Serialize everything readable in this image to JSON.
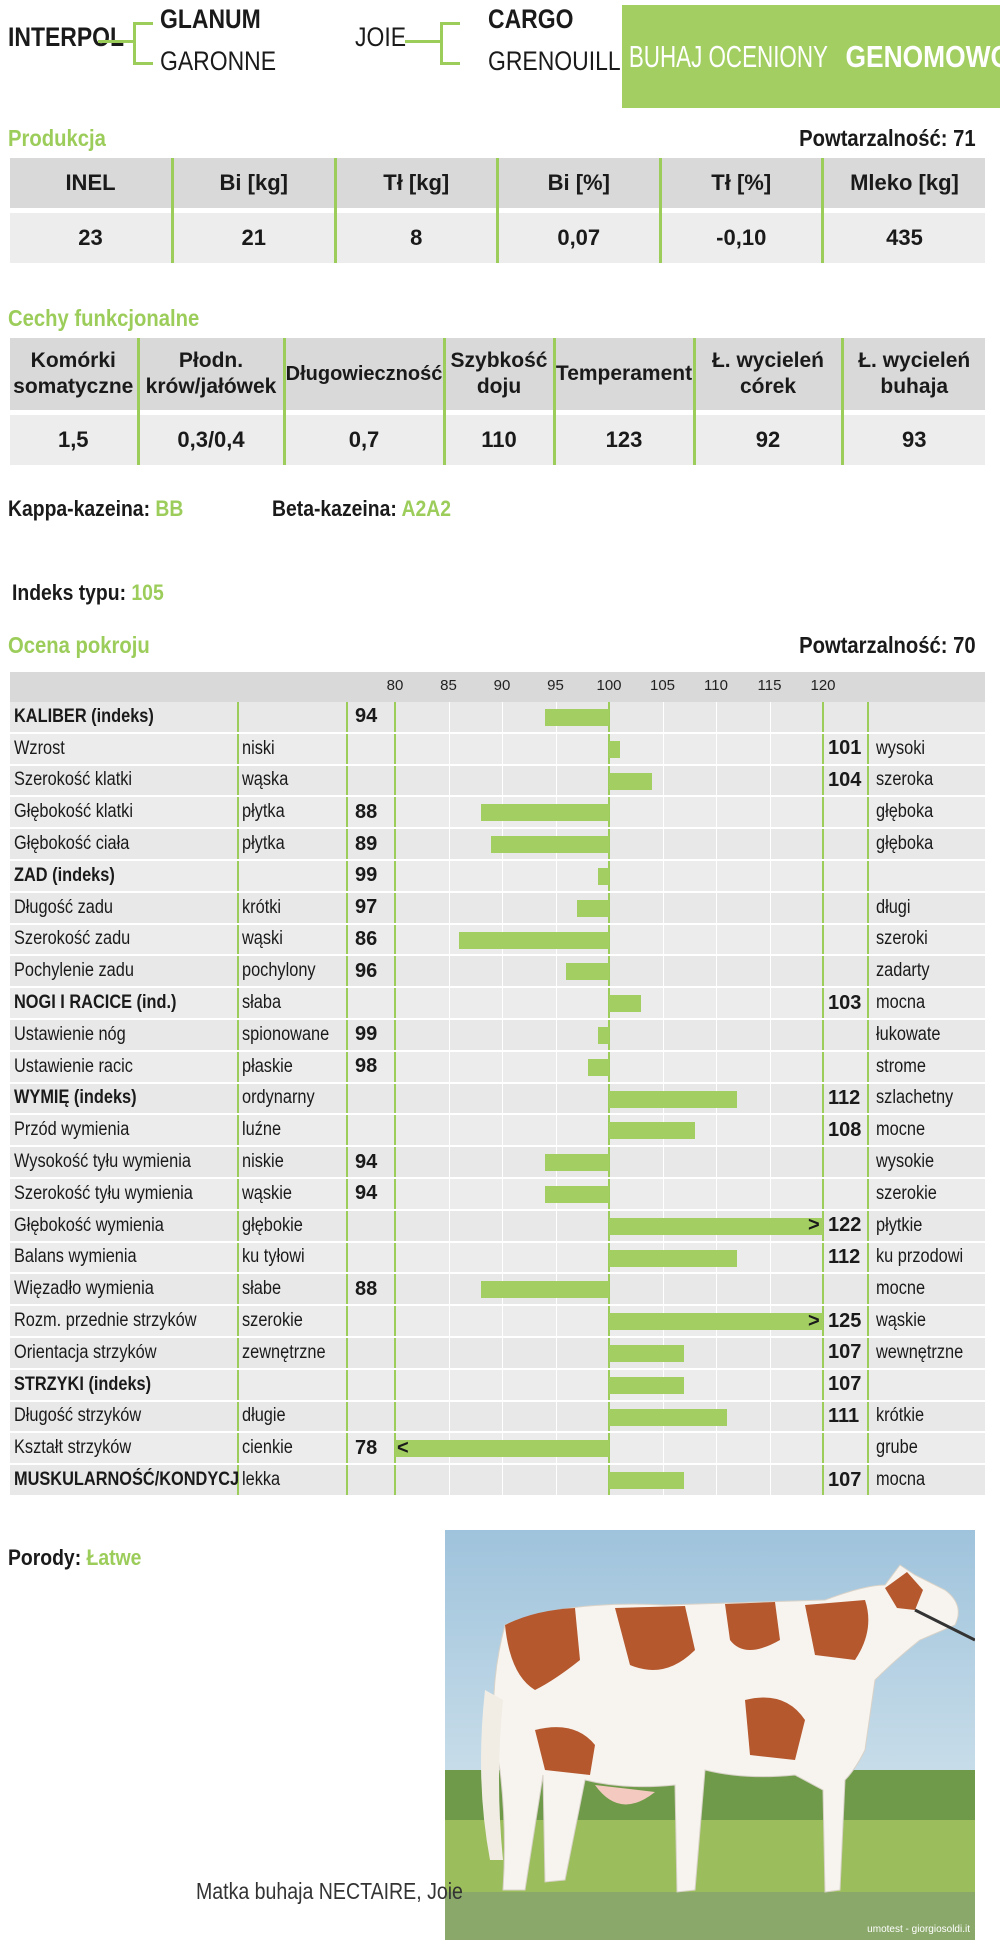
{
  "pedigree": {
    "sire": "INTERPOL",
    "sire_sire": "GLANUM",
    "sire_dam": "GARONNE",
    "dam": "JOIE",
    "dam_sire": "CARGO",
    "dam_dam": "GRENOUILLE"
  },
  "banner": {
    "prefix": "BUHAJ OCENIONY ",
    "emphasis": "GENOMOWO"
  },
  "production": {
    "title": "Produkcja",
    "repeatability": "Powtarzalność: 71",
    "headers": [
      "INEL",
      "Bi [kg]",
      "Tł [kg]",
      "Bi [%]",
      "Tł [%]",
      "Mleko [kg]"
    ],
    "values": [
      "23",
      "21",
      "8",
      "0,07",
      "-0,10",
      "435"
    ]
  },
  "functional": {
    "title": "Cechy funkcjonalne",
    "headers": [
      "Komórki somatyczne",
      "Płodn. krów/jałówek",
      "Długowieczność",
      "Szybkość doju",
      "Temperament",
      "Ł. wycieleń córek",
      "Ł. wycieleń buhaja"
    ],
    "values": [
      "1,5",
      "0,3/0,4",
      "0,7",
      "110",
      "123",
      "92",
      "93"
    ]
  },
  "casein": {
    "kappa_label": "Kappa-kazeina:",
    "kappa_value": "BB",
    "beta_label": "Beta-kazeina:",
    "beta_value": "A2A2"
  },
  "type_index": {
    "label": "Indeks typu:",
    "value": "105"
  },
  "conformation": {
    "title": "Ocena pokroju",
    "repeatability": "Powtarzalność: 70"
  },
  "chart_data": {
    "type": "bar",
    "orientation": "horizontal",
    "baseline": 100,
    "xlim": [
      80,
      120
    ],
    "xticks": [
      "80",
      "85",
      "90",
      "95",
      "100",
      "105",
      "110",
      "115",
      "120"
    ],
    "rows": [
      {
        "name": "KALIBER (indeks)",
        "low": "",
        "high": "",
        "value": 94,
        "shown": "94",
        "bold": true
      },
      {
        "name": "Wzrost",
        "low": "niski",
        "high": "wysoki",
        "value": 101,
        "shown": "101",
        "bold": false
      },
      {
        "name": "Szerokość klatki",
        "low": "wąska",
        "high": "szeroka",
        "value": 104,
        "shown": "104",
        "bold": false
      },
      {
        "name": "Głębokość klatki",
        "low": "płytka",
        "high": "głęboka",
        "value": 88,
        "shown": "88",
        "bold": false
      },
      {
        "name": "Głębokość ciała",
        "low": "płytka",
        "high": "głęboka",
        "value": 89,
        "shown": "89",
        "bold": false
      },
      {
        "name": "ZAD (indeks)",
        "low": "",
        "high": "",
        "value": 99,
        "shown": "99",
        "bold": true
      },
      {
        "name": "Długość zadu",
        "low": "krótki",
        "high": "długi",
        "value": 97,
        "shown": "97",
        "bold": false
      },
      {
        "name": "Szerokość zadu",
        "low": "wąski",
        "high": "szeroki",
        "value": 86,
        "shown": "86",
        "bold": false
      },
      {
        "name": "Pochylenie zadu",
        "low": "pochylony",
        "high": "zadarty",
        "value": 96,
        "shown": "96",
        "bold": false
      },
      {
        "name": "NOGI I RACICE (ind.)",
        "low": "słaba",
        "high": "mocna",
        "value": 103,
        "shown": "103",
        "bold": true
      },
      {
        "name": "Ustawienie nóg",
        "low": "spionowane",
        "high": "łukowate",
        "value": 99,
        "shown": "99",
        "bold": false
      },
      {
        "name": "Ustawienie racic",
        "low": "płaskie",
        "high": "strome",
        "value": 98,
        "shown": "98",
        "bold": false
      },
      {
        "name": "WYMIĘ (indeks)",
        "low": "ordynarny",
        "high": "szlachetny",
        "value": 112,
        "shown": "112",
        "bold": true
      },
      {
        "name": "Przód wymienia",
        "low": "luźne",
        "high": "mocne",
        "value": 108,
        "shown": "108",
        "bold": false
      },
      {
        "name": "Wysokość tyłu wymienia",
        "low": "niskie",
        "high": "wysokie",
        "value": 94,
        "shown": "94",
        "bold": false
      },
      {
        "name": "Szerokość tyłu wymienia",
        "low": "wąskie",
        "high": "szerokie",
        "value": 94,
        "shown": "94",
        "bold": false
      },
      {
        "name": "Głębokość wymienia",
        "low": "głębokie",
        "high": "płytkie",
        "value": 122,
        "shown": "122",
        "bold": false,
        "overflow": ">"
      },
      {
        "name": "Balans wymienia",
        "low": "ku tyłowi",
        "high": "ku przodowi",
        "value": 112,
        "shown": "112",
        "bold": false
      },
      {
        "name": "Więzadło wymienia",
        "low": "słabe",
        "high": "mocne",
        "value": 88,
        "shown": "88",
        "bold": false
      },
      {
        "name": "Rozm. przednie strzyków",
        "low": "szerokie",
        "high": "wąskie",
        "value": 125,
        "shown": "125",
        "bold": false,
        "overflow": ">"
      },
      {
        "name": "Orientacja strzyków",
        "low": "zewnętrzne",
        "high": "wewnętrzne",
        "value": 107,
        "shown": "107",
        "bold": false
      },
      {
        "name": "STRZYKI (indeks)",
        "low": "",
        "high": "",
        "value": 107,
        "shown": "107",
        "bold": true
      },
      {
        "name": "Długość strzyków",
        "low": "długie",
        "high": "krótkie",
        "value": 111,
        "shown": "111",
        "bold": false
      },
      {
        "name": "Kształt strzyków",
        "low": "cienkie",
        "high": "grube",
        "value": 78,
        "shown": "78",
        "bold": false,
        "overflow": "<"
      },
      {
        "name": "MUSKULARNOŚĆ/KONDYCJA",
        "low": "lekka",
        "high": "mocna",
        "value": 107,
        "shown": "107",
        "bold": true
      }
    ]
  },
  "calving": {
    "label": "Porody:",
    "value": "Łatwe"
  },
  "photo": {
    "caption": "Matka buhaja NECTAIRE, Joie",
    "credit": "umotest - giorgiosoldi.it",
    "colors": {
      "sky": "#cfe3ee",
      "grass": "#9bbd5c",
      "cow_white": "#f7f4ef",
      "cow_red": "#b5582e"
    }
  },
  "colors": {
    "accent": "#a3cf62",
    "header_gray": "#d9d9d9",
    "row_gray": "#ececec"
  }
}
